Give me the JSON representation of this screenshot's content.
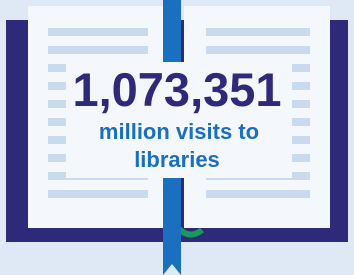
{
  "stat": {
    "value": "1,073,351",
    "label_lines": [
      "million visits to",
      "libraries"
    ]
  }
}
